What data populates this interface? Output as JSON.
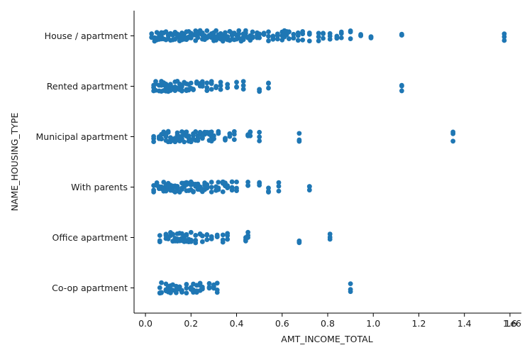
{
  "chart_data": {
    "type": "scatter",
    "subtype": "categorical strip plot",
    "xlabel": "AMT_INCOME_TOTAL",
    "ylabel": "NAME_HOUSING_TYPE",
    "x_scale_note": "1e6",
    "xlim": [
      -0.05,
      1.65
    ],
    "x_ticks": [
      0.0,
      0.2,
      0.4,
      0.6,
      0.8,
      1.0,
      1.2,
      1.4,
      1.6
    ],
    "x_tick_labels": [
      "0.0",
      "0.2",
      "0.4",
      "0.6",
      "0.8",
      "1.0",
      "1.2",
      "1.4",
      "1.6"
    ],
    "categories": [
      "House / apartment",
      "Rented apartment",
      "Municipal apartment",
      "With parents",
      "Office apartment",
      "Co-op apartment"
    ],
    "marker_color": "#1f77b4",
    "grid": false,
    "legend": "none",
    "series": [
      {
        "category": "House / apartment",
        "x": [
          0.027,
          0.04,
          0.05,
          0.06,
          0.07,
          0.08,
          0.09,
          0.1,
          0.11,
          0.12,
          0.13,
          0.14,
          0.15,
          0.16,
          0.17,
          0.18,
          0.19,
          0.2,
          0.21,
          0.22,
          0.23,
          0.24,
          0.25,
          0.26,
          0.27,
          0.28,
          0.29,
          0.3,
          0.31,
          0.32,
          0.33,
          0.34,
          0.35,
          0.36,
          0.37,
          0.38,
          0.39,
          0.4,
          0.41,
          0.42,
          0.43,
          0.44,
          0.45,
          0.46,
          0.47,
          0.49,
          0.5,
          0.52,
          0.54,
          0.56,
          0.58,
          0.6,
          0.61,
          0.62,
          0.63,
          0.65,
          0.67,
          0.69,
          0.72,
          0.76,
          0.78,
          0.81,
          0.84,
          0.86,
          0.9,
          0.945,
          0.99,
          1.125,
          1.575
        ]
      },
      {
        "category": "Rented apartment",
        "x": [
          0.036,
          0.045,
          0.06,
          0.07,
          0.08,
          0.09,
          0.1,
          0.11,
          0.12,
          0.13,
          0.14,
          0.15,
          0.16,
          0.17,
          0.18,
          0.19,
          0.2,
          0.21,
          0.225,
          0.24,
          0.25,
          0.27,
          0.29,
          0.31,
          0.33,
          0.36,
          0.4,
          0.43,
          0.5,
          0.54,
          1.125
        ]
      },
      {
        "category": "Municipal apartment",
        "x": [
          0.036,
          0.06,
          0.07,
          0.08,
          0.09,
          0.1,
          0.11,
          0.12,
          0.13,
          0.14,
          0.15,
          0.16,
          0.17,
          0.18,
          0.19,
          0.2,
          0.21,
          0.22,
          0.23,
          0.24,
          0.25,
          0.26,
          0.27,
          0.28,
          0.29,
          0.3,
          0.32,
          0.35,
          0.37,
          0.39,
          0.45,
          0.46,
          0.5,
          0.675,
          1.35
        ]
      },
      {
        "category": "With parents",
        "x": [
          0.036,
          0.05,
          0.06,
          0.07,
          0.08,
          0.09,
          0.1,
          0.11,
          0.12,
          0.13,
          0.14,
          0.15,
          0.16,
          0.17,
          0.18,
          0.19,
          0.2,
          0.21,
          0.22,
          0.23,
          0.24,
          0.25,
          0.26,
          0.27,
          0.29,
          0.31,
          0.32,
          0.34,
          0.35,
          0.36,
          0.38,
          0.4,
          0.45,
          0.5,
          0.54,
          0.585,
          0.72
        ]
      },
      {
        "category": "Office apartment",
        "x": [
          0.063,
          0.09,
          0.1,
          0.11,
          0.12,
          0.13,
          0.14,
          0.15,
          0.16,
          0.17,
          0.18,
          0.19,
          0.2,
          0.22,
          0.24,
          0.25,
          0.27,
          0.29,
          0.315,
          0.34,
          0.36,
          0.44,
          0.45,
          0.675,
          0.81
        ]
      },
      {
        "category": "Co-op apartment",
        "x": [
          0.063,
          0.07,
          0.09,
          0.1,
          0.11,
          0.12,
          0.135,
          0.15,
          0.16,
          0.18,
          0.2,
          0.21,
          0.225,
          0.24,
          0.25,
          0.28,
          0.3,
          0.315,
          0.9
        ]
      }
    ]
  }
}
